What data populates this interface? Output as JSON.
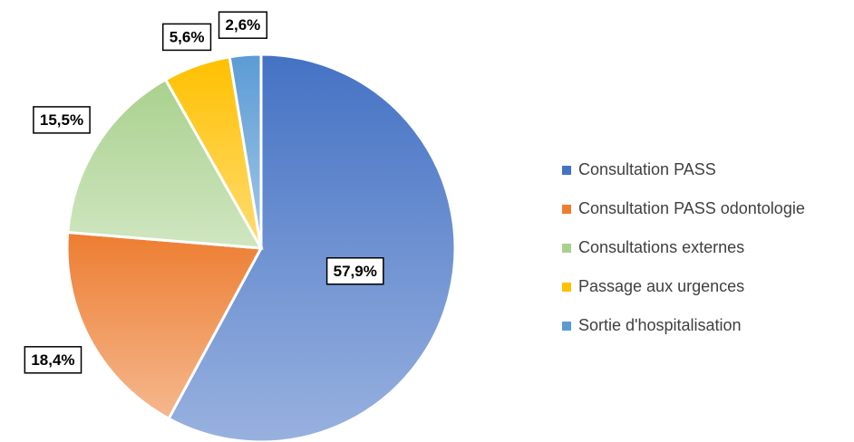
{
  "chart_data": {
    "type": "pie",
    "categories": [
      "Consultation PASS",
      "Consultation PASS odontologie",
      "Consultations externes",
      "Passage aux urgences",
      "Sortie d'hospitalisation"
    ],
    "values": [
      57.9,
      18.4,
      15.5,
      5.6,
      2.6
    ],
    "value_labels": [
      "57,9%",
      "18,4%",
      "15,5%",
      "5,6%",
      "2,6%"
    ],
    "colors": [
      "#4472c4",
      "#ed7d31",
      "#a9d18e",
      "#ffc000",
      "#5b9bd5"
    ],
    "legend": "right"
  }
}
